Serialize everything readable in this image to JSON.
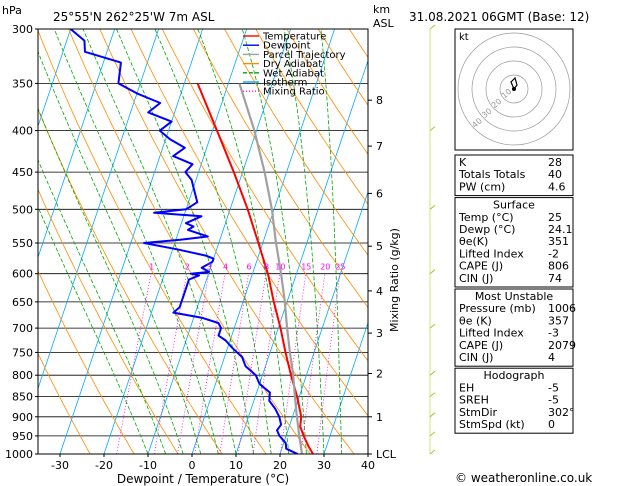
{
  "header": {
    "hpa_label": "hPa",
    "location": "25°55'N  262°25'W  7m  ASL",
    "km_label": "km",
    "asl_label": "ASL",
    "datetime": "31.08.2021  06GMT  (Base: 12)"
  },
  "legend": [
    {
      "label": "Temperature",
      "color": "#ff0000"
    },
    {
      "label": "Dewpoint",
      "color": "#0000ff"
    },
    {
      "label": "Parcel Trajectory",
      "color": "#a0a0a0"
    },
    {
      "label": "Dry Adiabat",
      "color": "#ff8c00"
    },
    {
      "label": "Wet Adiabat",
      "color": "#00aa00"
    },
    {
      "label": "Isotherm",
      "color": "#00aaff"
    },
    {
      "label": "Mixing Ratio",
      "color": "#ff00ff"
    }
  ],
  "footer": {
    "copyright": "© weatheronline.co.uk"
  },
  "hodograph": {
    "kt_label": "kt",
    "ring_labels": [
      "10",
      "20",
      "30",
      "40"
    ]
  },
  "indices": {
    "general": [
      {
        "label": "K",
        "value": "28"
      },
      {
        "label": "Totals Totals",
        "value": "40"
      },
      {
        "label": "PW (cm)",
        "value": "4.6"
      }
    ],
    "surface_title": "Surface",
    "surface": [
      {
        "label": "Temp (°C)",
        "value": "25"
      },
      {
        "label": "Dewp (°C)",
        "value": "24.1"
      },
      {
        "label": "θe(K)",
        "value": "351"
      },
      {
        "label": "Lifted Index",
        "value": "-2"
      },
      {
        "label": "CAPE (J)",
        "value": "806"
      },
      {
        "label": "CIN (J)",
        "value": "74"
      }
    ],
    "unstable_title": "Most Unstable",
    "unstable": [
      {
        "label": "Pressure (mb)",
        "value": "1006"
      },
      {
        "label": "θe (K)",
        "value": "357"
      },
      {
        "label": "Lifted Index",
        "value": "-3"
      },
      {
        "label": "CAPE (J)",
        "value": "2079"
      },
      {
        "label": "CIN (J)",
        "value": "4"
      }
    ],
    "hodograph_title": "Hodograph",
    "hodograph": [
      {
        "label": "EH",
        "value": "-5"
      },
      {
        "label": "SREH",
        "value": "-5"
      },
      {
        "label": "StmDir",
        "value": "302°"
      },
      {
        "label": "StmSpd (kt)",
        "value": "0"
      }
    ]
  },
  "chart_data": {
    "type": "line",
    "title": "25°55'N  262°25'W  7m  ASL",
    "xlabel": "Dewpoint / Temperature (°C)",
    "ylabel": "hPa",
    "right_ylabel": "Mixing Ratio (g/kg)",
    "xlim": [
      -35,
      40
    ],
    "ylim": [
      1000,
      300
    ],
    "skew_per_decade_c": 62,
    "x_ticks": [
      -30,
      -20,
      -10,
      0,
      10,
      20,
      30,
      40
    ],
    "pressure_levels": [
      300,
      350,
      400,
      450,
      500,
      550,
      600,
      650,
      700,
      750,
      800,
      850,
      900,
      950,
      1000
    ],
    "km_ticks": [
      {
        "label": "8",
        "p": 367
      },
      {
        "label": "7",
        "p": 418
      },
      {
        "label": "6",
        "p": 478
      },
      {
        "label": "5",
        "p": 555
      },
      {
        "label": "4",
        "p": 630
      },
      {
        "label": "3",
        "p": 710
      },
      {
        "label": "2",
        "p": 796
      },
      {
        "label": "1",
        "p": 900
      },
      {
        "label": "LCL",
        "p": 1000
      }
    ],
    "mixing_ratio_labels": [
      "1",
      "2",
      "3",
      "4",
      "6",
      "8",
      "10",
      "15",
      "20",
      "25"
    ],
    "mixing_ratio_values": [
      1,
      2,
      3,
      4,
      6,
      8,
      10,
      15,
      20,
      25
    ],
    "mixing_ratio_label_p": 595,
    "isotherms": [
      -120,
      -110,
      -100,
      -90,
      -80,
      -70,
      -60,
      -50,
      -40,
      -30,
      -20,
      -10,
      0,
      10,
      20,
      30,
      40
    ],
    "dry_adiabats_theta_k": [
      250,
      260,
      270,
      280,
      290,
      300,
      310,
      320,
      330,
      340,
      350,
      360,
      370,
      380,
      390,
      400,
      410,
      420,
      430,
      440,
      450,
      460,
      470
    ],
    "wet_adiabats_c": [
      -10,
      -6,
      -2,
      2,
      6,
      10,
      14,
      18,
      22,
      26,
      30,
      34
    ],
    "series": [
      {
        "name": "Temperature",
        "color": "#ff0000",
        "p": [
          1000,
          980,
          950,
          925,
          900,
          850,
          800,
          750,
          700,
          650,
          600,
          550,
          500,
          450,
          400,
          350
        ],
        "t": [
          27.5,
          26,
          24,
          22.5,
          22,
          19.5,
          16.5,
          13.5,
          10.5,
          7,
          3.5,
          -1,
          -6,
          -12,
          -19,
          -27
        ]
      },
      {
        "name": "Dewpoint",
        "color": "#0000ff",
        "p": [
          1000,
          985,
          970,
          950,
          935,
          920,
          900,
          880,
          860,
          840,
          820,
          800,
          780,
          760,
          740,
          725,
          715,
          700,
          690,
          680,
          670,
          660,
          650,
          640,
          620,
          610,
          603,
          600,
          597,
          590,
          580,
          575,
          570,
          560,
          550,
          545,
          540,
          530,
          525,
          520,
          510,
          505,
          500,
          490,
          480,
          470,
          460,
          450,
          440,
          430,
          420,
          410,
          400,
          390,
          380,
          370,
          360,
          350,
          330,
          320,
          310,
          300
        ],
        "t": [
          24,
          21,
          20.5,
          18.5,
          17.5,
          18,
          17,
          15.5,
          13.5,
          13,
          10,
          8.5,
          5.5,
          4,
          1,
          -1,
          -3,
          -3,
          -4,
          -8,
          -15,
          -14,
          -14,
          -14,
          -14,
          -14,
          -12,
          -14,
          -10,
          -12,
          -10,
          -10,
          -12,
          -19,
          -27,
          -19,
          -13,
          -18,
          -17,
          -19,
          -16,
          -27,
          -20,
          -18,
          -19,
          -20,
          -21,
          -23,
          -22,
          -27,
          -25,
          -29,
          -32,
          -30,
          -36,
          -34,
          -40,
          -45,
          -46,
          -55,
          -56,
          -60
        ]
      },
      {
        "name": "Parcel Trajectory",
        "color": "#a0a0a0",
        "p": [
          1000,
          950,
          900,
          850,
          800,
          750,
          700,
          650,
          600,
          550,
          500,
          450,
          400,
          350
        ],
        "t": [
          25,
          23,
          21,
          19,
          17,
          14.5,
          12,
          9.5,
          6.5,
          3,
          -0.5,
          -5,
          -10.5,
          -17.5
        ]
      }
    ]
  }
}
